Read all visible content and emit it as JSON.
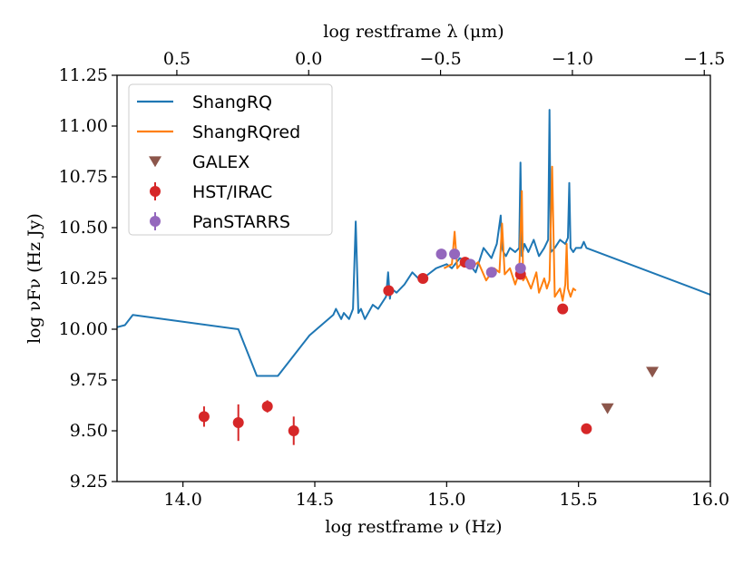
{
  "chart_data": {
    "type": "line",
    "xlabel": "log restframe ν (Hz)",
    "ylabel": "log νFν (Hz Jy)",
    "top_xlabel": "log restframe λ (μm)",
    "xlim": [
      13.75,
      16.0
    ],
    "ylim": [
      9.25,
      11.25
    ],
    "x_ticks": [
      "14.0",
      "14.5",
      "15.0",
      "15.5",
      "16.0"
    ],
    "x_tick_values": [
      14.0,
      14.5,
      15.0,
      15.5,
      16.0
    ],
    "y_ticks": [
      "9.25",
      "9.50",
      "9.75",
      "10.00",
      "10.25",
      "10.50",
      "10.75",
      "11.00",
      "11.25"
    ],
    "y_tick_values": [
      9.25,
      9.5,
      9.75,
      10.0,
      10.25,
      10.5,
      10.75,
      11.0,
      11.25
    ],
    "top_ticks": [
      "0.5",
      "0.0",
      "−0.5",
      "−1.0",
      "−1.5"
    ],
    "top_tick_values": [
      0.5,
      0.0,
      -0.5,
      -1.0,
      -1.5
    ],
    "legend_position": "top-left",
    "series": [
      {
        "name": "ShangRQ",
        "kind": "line",
        "color": "#1f77b4",
        "x": [
          13.75,
          13.78,
          13.81,
          14.21,
          14.28,
          14.36,
          14.48,
          14.57,
          14.58,
          14.6,
          14.61,
          14.63,
          14.645,
          14.655,
          14.665,
          14.675,
          14.69,
          14.72,
          14.74,
          14.77,
          14.778,
          14.785,
          14.79,
          14.81,
          14.84,
          14.87,
          14.9,
          14.93,
          14.96,
          15.0,
          15.02,
          15.05,
          15.08,
          15.11,
          15.14,
          15.17,
          15.19,
          15.205,
          15.21,
          15.215,
          15.225,
          15.24,
          15.26,
          15.275,
          15.28,
          15.285,
          15.295,
          15.31,
          15.33,
          15.35,
          15.37,
          15.385,
          15.39,
          15.395,
          15.41,
          15.43,
          15.45,
          15.46,
          15.465,
          15.47,
          15.48,
          15.49,
          15.51,
          15.52,
          15.53,
          16.0
        ],
        "y": [
          10.01,
          10.02,
          10.07,
          10.0,
          9.77,
          9.77,
          9.97,
          10.07,
          10.1,
          10.05,
          10.08,
          10.05,
          10.1,
          10.53,
          10.08,
          10.1,
          10.05,
          10.12,
          10.1,
          10.16,
          10.28,
          10.15,
          10.2,
          10.18,
          10.22,
          10.28,
          10.24,
          10.27,
          10.3,
          10.32,
          10.3,
          10.35,
          10.33,
          10.28,
          10.4,
          10.35,
          10.42,
          10.56,
          10.4,
          10.38,
          10.36,
          10.4,
          10.38,
          10.4,
          10.82,
          10.36,
          10.42,
          10.38,
          10.44,
          10.36,
          10.4,
          10.44,
          11.08,
          10.38,
          10.4,
          10.44,
          10.42,
          10.45,
          10.72,
          10.4,
          10.38,
          10.4,
          10.4,
          10.43,
          10.4,
          10.17
        ]
      },
      {
        "name": "ShangRQred",
        "kind": "line",
        "color": "#ff7f0e",
        "x": [
          14.99,
          15.02,
          15.03,
          15.04,
          15.06,
          15.09,
          15.12,
          15.15,
          15.18,
          15.2,
          15.21,
          15.22,
          15.24,
          15.26,
          15.275,
          15.285,
          15.29,
          15.3,
          15.32,
          15.34,
          15.35,
          15.37,
          15.38,
          15.39,
          15.4,
          15.41,
          15.43,
          15.44,
          15.45,
          15.455,
          15.46,
          15.47,
          15.48,
          15.49
        ],
        "y": [
          10.3,
          10.32,
          10.48,
          10.3,
          10.33,
          10.3,
          10.33,
          10.24,
          10.3,
          10.28,
          10.52,
          10.27,
          10.3,
          10.22,
          10.28,
          10.68,
          10.24,
          10.26,
          10.2,
          10.28,
          10.18,
          10.25,
          10.2,
          10.24,
          10.8,
          10.16,
          10.2,
          10.14,
          10.22,
          10.42,
          10.2,
          10.16,
          10.2,
          10.19
        ]
      },
      {
        "name": "GALEX",
        "kind": "markers",
        "marker": "triangle-down",
        "color": "#8c564b",
        "x": [
          15.61,
          15.78
        ],
        "y": [
          9.61,
          9.79
        ]
      },
      {
        "name": "HST/IRAC",
        "kind": "errorbar",
        "color": "#d62728",
        "x": [
          14.08,
          14.21,
          14.32,
          14.42,
          14.78,
          14.91,
          15.07,
          15.28,
          15.44,
          15.53
        ],
        "y": [
          9.57,
          9.54,
          9.62,
          9.5,
          10.19,
          10.25,
          10.33,
          10.27,
          10.1,
          9.51
        ],
        "yerr": [
          0.05,
          0.09,
          0.03,
          0.07,
          0.02,
          0.02,
          0.02,
          0.02,
          0.02,
          0.02
        ]
      },
      {
        "name": "PanSTARRS",
        "kind": "errorbar",
        "color": "#9467bd",
        "x": [
          14.98,
          15.03,
          15.09,
          15.17,
          15.28
        ],
        "y": [
          10.37,
          10.37,
          10.32,
          10.28,
          10.3
        ],
        "yerr": [
          0.02,
          0.02,
          0.02,
          0.02,
          0.02
        ]
      }
    ]
  }
}
